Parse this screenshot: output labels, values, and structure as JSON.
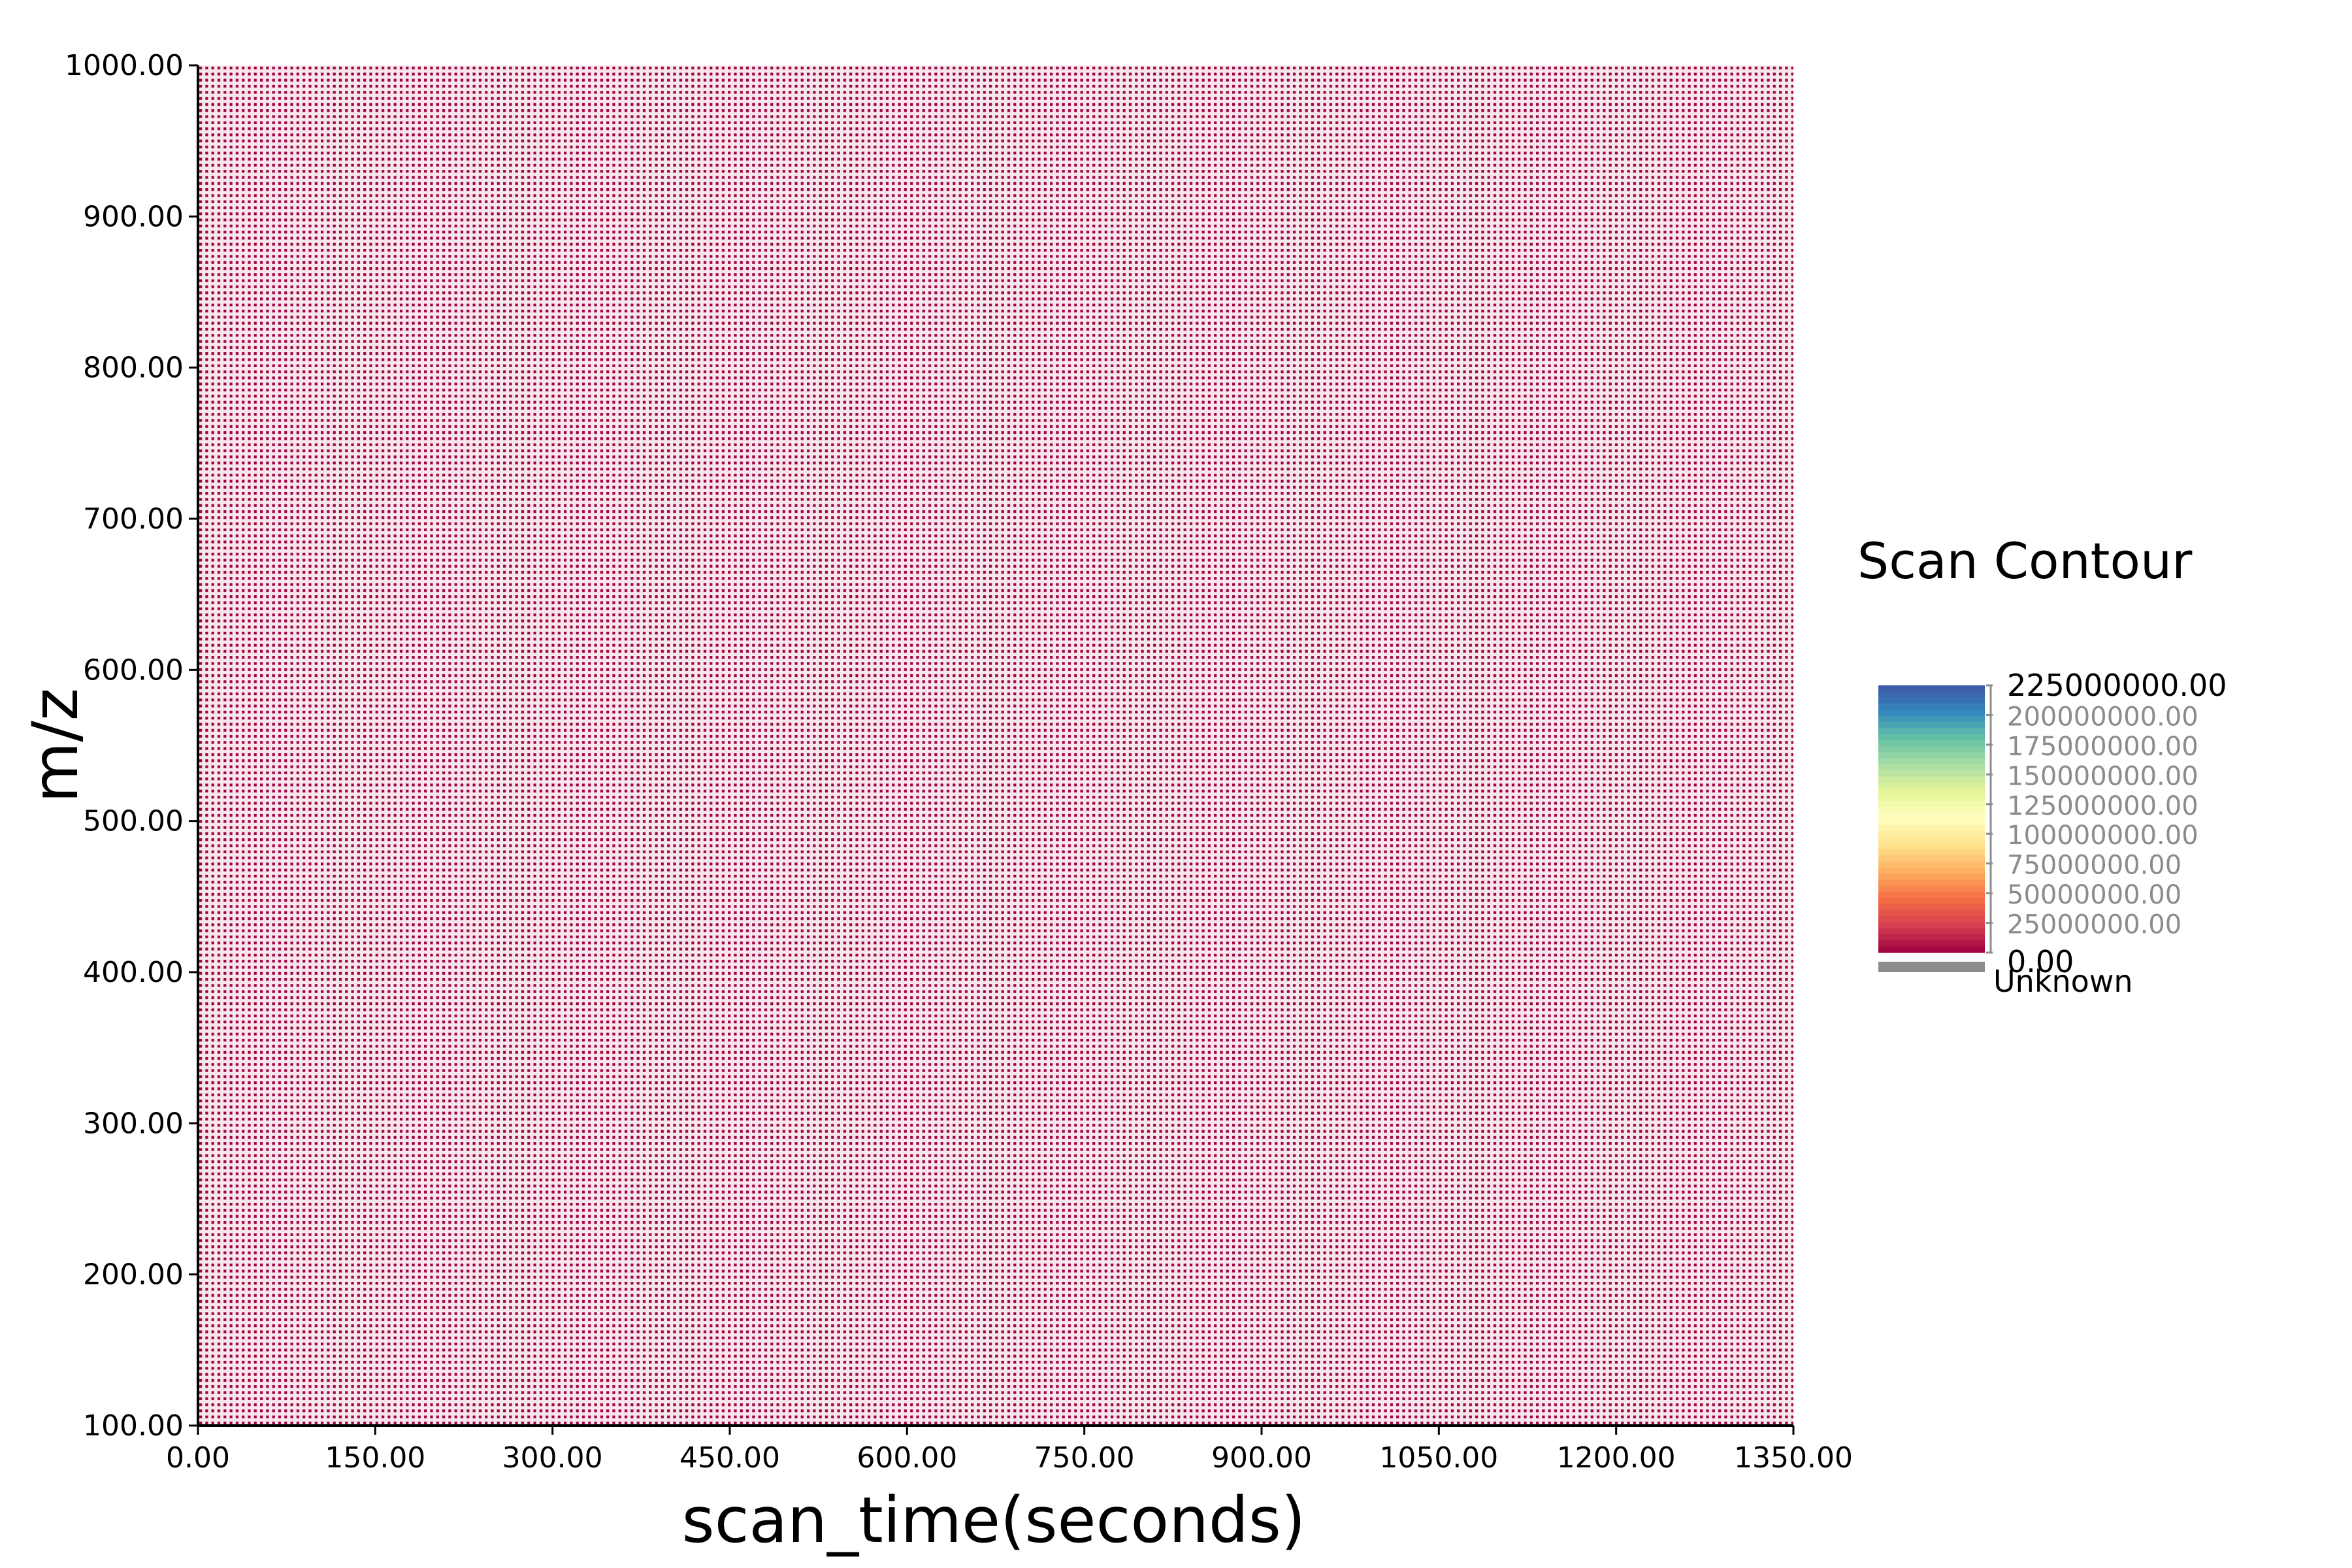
{
  "chart_data": {
    "type": "heatmap",
    "xlabel": "scan_time(seconds)",
    "ylabel": "m/z",
    "xlim": [
      0,
      1350
    ],
    "ylim": [
      100,
      1000
    ],
    "x_ticks": [
      "0.00",
      "150.00",
      "300.00",
      "450.00",
      "600.00",
      "750.00",
      "900.00",
      "1050.00",
      "1200.00",
      "1350.00"
    ],
    "y_ticks": [
      "100.00",
      "200.00",
      "300.00",
      "400.00",
      "500.00",
      "600.00",
      "700.00",
      "800.00",
      "900.00",
      "1000.00"
    ],
    "grid": false,
    "fill_value": 0,
    "fill_color": "#9e0142",
    "legend": {
      "title": "Scan Contour",
      "placement": "right",
      "range": [
        0,
        225000000
      ],
      "ticks": [
        "225000000.00",
        "200000000.00",
        "175000000.00",
        "150000000.00",
        "125000000.00",
        "100000000.00",
        "75000000.00",
        "50000000.00",
        "25000000.00",
        "0.00"
      ],
      "colors": [
        "#9e0142",
        "#d53e4f",
        "#f46d43",
        "#fdae61",
        "#fee08b",
        "#ffffbf",
        "#e6f598",
        "#abdda4",
        "#66c2a5",
        "#3288bd",
        "#3f56a6"
      ],
      "unknown_label": "Unknown",
      "unknown_color": "#8c8c8c"
    }
  }
}
